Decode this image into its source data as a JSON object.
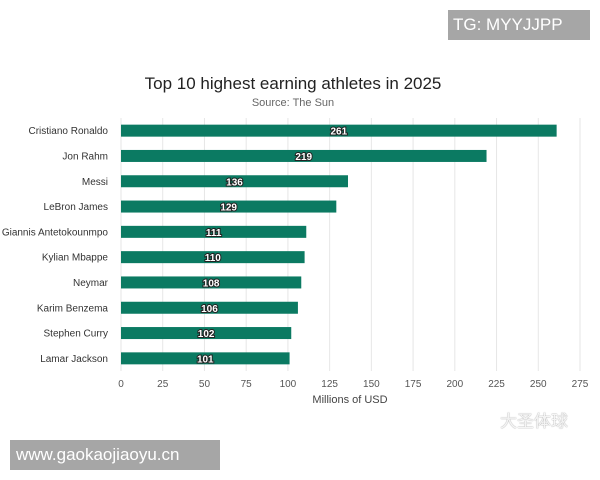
{
  "watermarks": {
    "top_right": "TG: MYYJJPP",
    "bottom_left": "www.gaokaojiaoyu.cn",
    "overlay": "大圣体球"
  },
  "colors": {
    "bar": "#0b7a62",
    "grid": "#e6e6e6",
    "text": "#333333"
  },
  "chart_data": {
    "type": "bar",
    "orientation": "horizontal",
    "title": "Top 10 highest earning athletes in 2025",
    "subtitle": "Source: The Sun",
    "xlabel": "Millions of USD",
    "ylabel": "",
    "categories": [
      "Cristiano Ronaldo",
      "Jon Rahm",
      "Messi",
      "LeBron James",
      "Giannis Antetokounmpo",
      "Kylian Mbappe",
      "Neymar",
      "Karim Benzema",
      "Stephen Curry",
      "Lamar Jackson"
    ],
    "values": [
      261,
      219,
      136,
      129,
      111,
      110,
      108,
      106,
      102,
      101
    ],
    "xlim": [
      0,
      275
    ],
    "xticks": [
      "0",
      "25",
      "50",
      "75",
      "100",
      "125",
      "150",
      "175",
      "200",
      "225",
      "250",
      "275"
    ],
    "grid": true,
    "data_labels": true
  }
}
